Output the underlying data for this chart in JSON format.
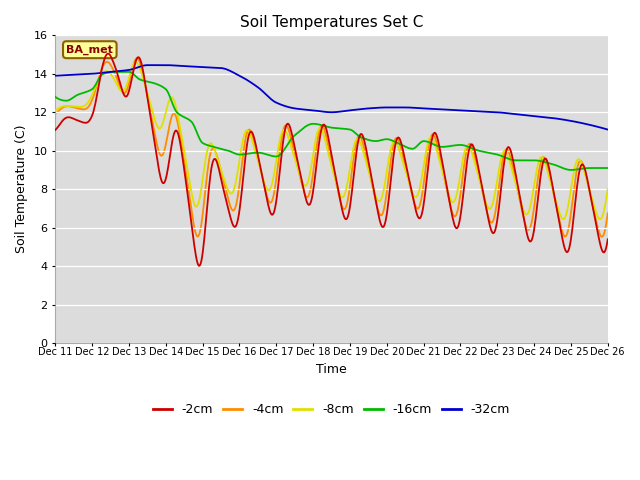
{
  "title": "Soil Temperatures Set C",
  "xlabel": "Time",
  "ylabel": "Soil Temperature (C)",
  "ylim": [
    0,
    16
  ],
  "yticks": [
    0,
    2,
    4,
    6,
    8,
    10,
    12,
    14,
    16
  ],
  "xtick_labels": [
    "Dec 11",
    "Dec 12",
    "Dec 13",
    "Dec 14",
    "Dec 15",
    "Dec 16",
    "Dec 17",
    "Dec 18",
    "Dec 19",
    "Dec 20",
    "Dec 21",
    "Dec 22",
    "Dec 23",
    "Dec 24",
    "Dec 25",
    "Dec 26"
  ],
  "bg_color": "#dcdcdc",
  "grid_color": "#ffffff",
  "series_colors": {
    "2cm": "#cc0000",
    "4cm": "#ff8c00",
    "8cm": "#e0e000",
    "16cm": "#00bb00",
    "32cm": "#0000cc"
  },
  "series_linewidth": 1.3,
  "annotation_text": "BA_met",
  "annotation_color": "#8b0000",
  "annotation_bg": "#ffff99",
  "annotation_edge": "#8b6000",
  "legend_fontsize": 9,
  "title_fontsize": 11,
  "axis_label_fontsize": 9,
  "tick_fontsize": 7,
  "n_per_day": 48,
  "n_days": 15,
  "t32_t": [
    0,
    0.5,
    1,
    1.5,
    2,
    2.5,
    3,
    3.5,
    4,
    4.5,
    5,
    5.5,
    6,
    6.5,
    7,
    7.5,
    8,
    8.5,
    9,
    9.5,
    10,
    10.5,
    11,
    11.5,
    12,
    12.5,
    13,
    13.5,
    14,
    14.5,
    15
  ],
  "t32_v": [
    13.9,
    13.95,
    14.0,
    14.1,
    14.2,
    14.45,
    14.45,
    14.4,
    14.35,
    14.3,
    13.9,
    13.3,
    12.5,
    12.2,
    12.1,
    12.0,
    12.1,
    12.2,
    12.25,
    12.25,
    12.2,
    12.15,
    12.1,
    12.05,
    12.0,
    11.9,
    11.8,
    11.7,
    11.55,
    11.35,
    11.1
  ],
  "t16_t": [
    0,
    0.3,
    0.6,
    1.0,
    1.3,
    1.6,
    2.0,
    2.3,
    2.7,
    3.0,
    3.3,
    3.7,
    4.0,
    4.3,
    4.7,
    5.0,
    5.5,
    6.0,
    6.5,
    7.0,
    7.5,
    8.0,
    8.3,
    8.7,
    9.0,
    9.3,
    9.7,
    10.0,
    10.5,
    11.0,
    11.5,
    12.0,
    12.5,
    13.0,
    13.5,
    14.0,
    14.5,
    15.0
  ],
  "t16_v": [
    12.8,
    12.6,
    12.9,
    13.2,
    14.0,
    14.1,
    14.1,
    13.7,
    13.5,
    13.2,
    12.0,
    11.5,
    10.4,
    10.2,
    10.0,
    9.8,
    9.9,
    9.7,
    10.8,
    11.4,
    11.2,
    11.1,
    10.7,
    10.5,
    10.6,
    10.4,
    10.1,
    10.5,
    10.2,
    10.3,
    10.0,
    9.8,
    9.5,
    9.5,
    9.3,
    9.0,
    9.1,
    9.1
  ],
  "t_osc_t": [
    0,
    0.5,
    1.0,
    1.5,
    2.0,
    2.5,
    3.0,
    3.5,
    4.0,
    4.5,
    5.0,
    5.5,
    6.0,
    6.5,
    7.0,
    7.5,
    8.0,
    8.5,
    9.0,
    9.5,
    10.0,
    10.5,
    11.0,
    11.5,
    12.0,
    12.5,
    13.0,
    13.5,
    14.0,
    14.5,
    15.0
  ],
  "env2_v": [
    11.3,
    11.5,
    12.2,
    14.5,
    14.2,
    12.0,
    10.0,
    8.0,
    6.5,
    7.5,
    8.5,
    8.8,
    9.0,
    9.2,
    9.5,
    8.8,
    8.7,
    8.5,
    8.3,
    8.5,
    8.8,
    8.5,
    8.2,
    8.0,
    8.0,
    7.8,
    7.5,
    7.2,
    7.0,
    7.0,
    7.0
  ],
  "env4_v": [
    12.0,
    12.2,
    12.8,
    14.3,
    14.0,
    12.5,
    11.0,
    9.0,
    7.5,
    8.5,
    9.0,
    9.2,
    9.3,
    9.4,
    9.6,
    9.0,
    8.9,
    8.7,
    8.6,
    8.8,
    9.0,
    8.7,
    8.5,
    8.3,
    8.2,
    8.0,
    7.8,
    7.6,
    7.5,
    7.5,
    7.5
  ],
  "env8_v": [
    12.1,
    12.3,
    12.9,
    14.0,
    13.8,
    13.0,
    12.0,
    10.0,
    8.5,
    9.0,
    9.5,
    9.5,
    9.5,
    9.6,
    9.8,
    9.2,
    9.1,
    9.0,
    8.9,
    9.0,
    9.2,
    9.0,
    8.8,
    8.6,
    8.5,
    8.3,
    8.2,
    8.0,
    8.0,
    8.0,
    8.0
  ],
  "amp2_t": [
    0,
    1,
    2,
    3,
    4,
    5,
    6,
    7,
    8,
    9,
    10,
    11,
    12,
    13,
    14,
    15
  ],
  "amp2_v": [
    0.3,
    0.5,
    1.5,
    2.0,
    2.5,
    2.2,
    2.2,
    2.2,
    2.2,
    2.2,
    2.2,
    2.2,
    2.2,
    2.2,
    2.2,
    2.2
  ],
  "amp4_v": [
    0.2,
    0.4,
    1.2,
    1.7,
    2.1,
    1.9,
    1.9,
    1.9,
    1.9,
    1.9,
    1.9,
    1.9,
    1.9,
    1.9,
    1.9,
    1.9
  ],
  "amp8_v": [
    0.15,
    0.3,
    0.9,
    1.3,
    1.7,
    1.5,
    1.5,
    1.5,
    1.5,
    1.5,
    1.5,
    1.5,
    1.5,
    1.5,
    1.5,
    1.5
  ],
  "phase2": 0.0,
  "phase4": 0.05,
  "phase8": 0.1
}
